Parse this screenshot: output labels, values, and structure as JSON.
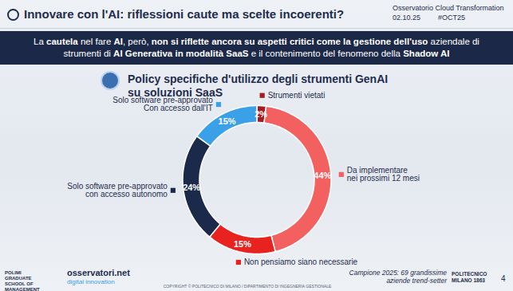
{
  "header": {
    "title": "Innovare con l'AI: riflessioni caute ma scelte incoerenti?",
    "right": [
      "Osservatorio Cloud Transformation",
      "02.10.25",
      "#OCT25"
    ]
  },
  "banner": [
    {
      "text": "La ",
      "bold": false
    },
    {
      "text": "cautela",
      "bold": true
    },
    {
      "text": " nel fare ",
      "bold": false
    },
    {
      "text": "AI",
      "bold": true
    },
    {
      "text": ", però, ",
      "bold": false
    },
    {
      "text": "non si riflette ancora su aspetti critici come la gestione dell'uso",
      "bold": true
    },
    {
      "text": " aziendale di strumenti di ",
      "bold": false
    },
    {
      "text": "AI Generativa in modalità SaaS",
      "bold": true
    },
    {
      "text": " e il contenimento del fenomeno della ",
      "bold": false
    },
    {
      "text": "Shadow AI",
      "bold": true
    }
  ],
  "chart_data": {
    "type": "donut",
    "title": "Policy specifiche d'utilizzo degli strumenti GenAI su soluzioni SaaS",
    "categories": [
      "Strumenti vietati",
      "Da implementare\nnei prossimi 12 mesi",
      "Non pensiamo siano necessarie",
      "Solo software pre-approvato\ncon accesso autonomo",
      "Solo software pre-approvato\nCon accesso dall'IT"
    ],
    "values": [
      2,
      44,
      15,
      24,
      15
    ],
    "value_labels": [
      "2%",
      "44%",
      "15%",
      "24%",
      "15%"
    ],
    "colors": [
      "#a31c22",
      "#f26060",
      "#e8231f",
      "#1b2a4a",
      "#3aa0e8"
    ],
    "data_labels": true
  },
  "footer": {
    "school": "POLIMI GRADUATE SCHOOL OF MANAGEMENT",
    "logo": [
      "osservatori.net",
      "digital innovation"
    ],
    "copyright": "COPYRIGHT © POLITECNICO DI MILANO / DIPARTIMENTO DI INGEGNERIA GESTIONALE",
    "sample": "Campione 2025: 69 grandissime aziende trend-setter",
    "institution": "POLITECNICO MILANO 1863",
    "page": "4"
  }
}
